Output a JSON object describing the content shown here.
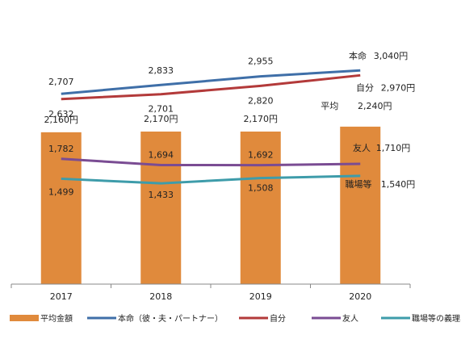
{
  "chart_data": {
    "type": "bar+line",
    "categories": [
      "2017",
      "2018",
      "2019",
      "2020"
    ],
    "ylim": [
      0,
      3500
    ],
    "grid": false,
    "legend_position": "bottom",
    "bar_series": {
      "name": "平均金額",
      "color": "#E08A3C",
      "values": [
        2160,
        2170,
        2170,
        2240
      ],
      "data_labels": [
        "2,160円",
        "2,170円",
        "2,170円",
        "2,240円"
      ],
      "series_label": "平均"
    },
    "line_series": [
      {
        "name": "本命（彼・夫・パートナー）",
        "series_label": "本命",
        "color": "#3F6FA8",
        "values": [
          2707,
          2833,
          2955,
          3040
        ],
        "data_labels": [
          "2,707",
          "2,833",
          "2,955",
          "3,040円"
        ]
      },
      {
        "name": "自分",
        "series_label": "自分",
        "color": "#B33A3A",
        "values": [
          2632,
          2701,
          2820,
          2970
        ],
        "data_labels": [
          "2,632",
          "2,701",
          "2,820",
          "2,970円"
        ]
      },
      {
        "name": "友人",
        "series_label": "友人",
        "color": "#7A4C93",
        "values": [
          1782,
          1694,
          1692,
          1710
        ],
        "data_labels": [
          "1,782",
          "1,694",
          "1,692",
          "1,710円"
        ]
      },
      {
        "name": "職場等の義理、取引先",
        "series_label": "職場等",
        "color": "#3E9CAA",
        "values": [
          1499,
          1433,
          1508,
          1540
        ],
        "data_labels": [
          "1,499",
          "1,433",
          "1,508",
          "1,540円"
        ]
      }
    ]
  }
}
